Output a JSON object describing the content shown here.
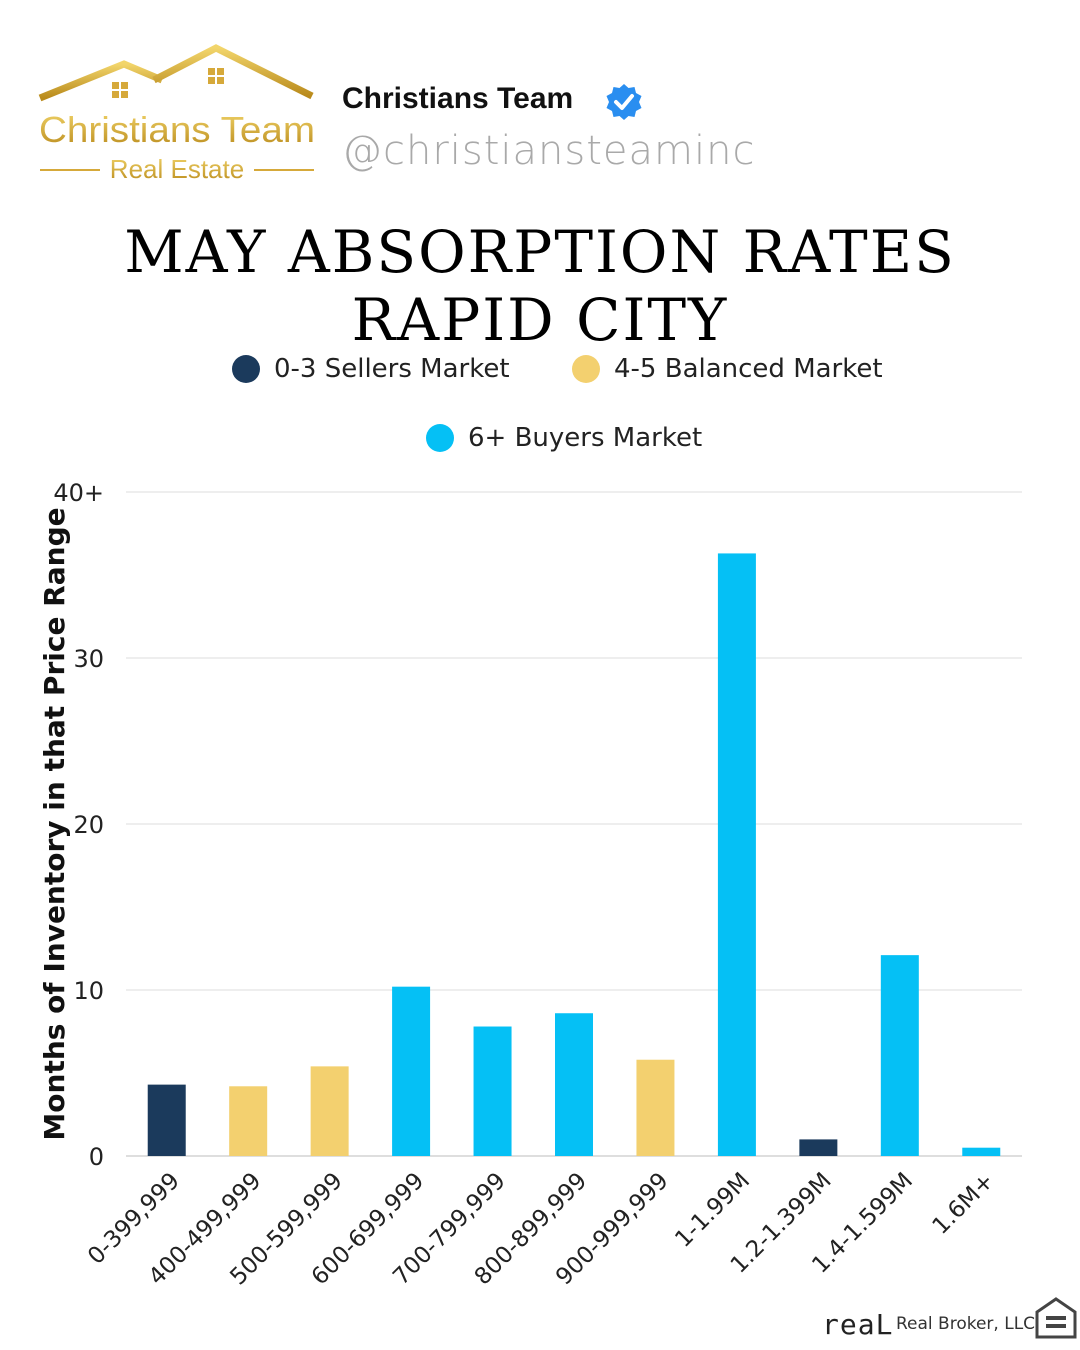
{
  "header": {
    "logo_line1": "Christians Team",
    "logo_line2": "Real Estate",
    "profile_name": "Christians Team",
    "handle": "@christiansteaminc",
    "verified_icon": "verified-badge-icon"
  },
  "title": {
    "line1": "MAY ABSORPTION RATES",
    "line2": "RAPID CITY"
  },
  "legend": [
    {
      "label": "0-3 Sellers Market",
      "color": "#1b3a5c"
    },
    {
      "label": "4-5 Balanced Market",
      "color": "#f3d06f"
    },
    {
      "label": "6+ Buyers Market",
      "color": "#05c0f5"
    }
  ],
  "chart_data": {
    "type": "bar",
    "title": "MAY ABSORPTION RATES RAPID CITY",
    "xlabel": "",
    "ylabel": "Months of Inventory in that Price Range",
    "ylim": [
      0,
      40
    ],
    "yticks": [
      "0",
      "10",
      "20",
      "30",
      "40+"
    ],
    "grid": true,
    "legend_position": "top",
    "categories": [
      "0-399,999",
      "400-499,999",
      "500-599,999",
      "600-699,999",
      "700-799,999",
      "800-899,999",
      "900-999,999",
      "1-1.99M",
      "1.2-1.399M",
      "1.4-1.599M",
      "1.6M+"
    ],
    "values": [
      4.3,
      4.2,
      5.4,
      10.2,
      7.8,
      8.6,
      5.8,
      36.3,
      1.0,
      12.1,
      0.5
    ],
    "bar_groups": [
      "sellers",
      "balanced",
      "balanced",
      "buyers",
      "buyers",
      "buyers",
      "balanced",
      "buyers",
      "sellers",
      "buyers",
      "buyers"
    ],
    "group_colors": {
      "sellers": "#1b3a5c",
      "balanced": "#f3d06f",
      "buyers": "#05c0f5"
    }
  },
  "footer": {
    "brand": "reaL",
    "broker": "Real Broker, LLC",
    "icon": "equal-housing-icon"
  }
}
